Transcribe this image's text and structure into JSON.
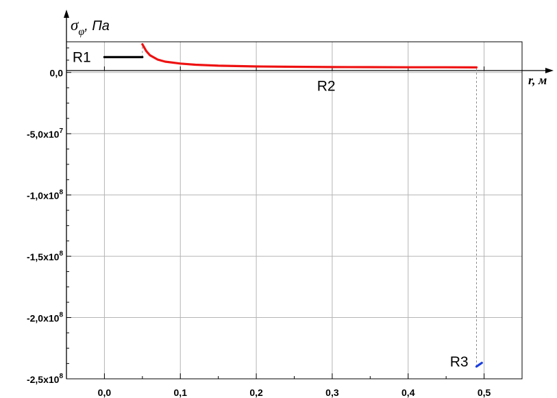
{
  "chart_data": {
    "type": "line",
    "ylabel": {
      "symbol": "σ",
      "subscript": "φ",
      "unit": ", Па"
    },
    "xlabel": "r, м",
    "xlim": [
      -0.05,
      0.55
    ],
    "ylim": [
      -250000000,
      25000000
    ],
    "x_ticks": [
      {
        "value": 0.0,
        "label": "0,0"
      },
      {
        "value": 0.1,
        "label": "0,1"
      },
      {
        "value": 0.2,
        "label": "0,2"
      },
      {
        "value": 0.3,
        "label": "0,3"
      },
      {
        "value": 0.4,
        "label": "0,4"
      },
      {
        "value": 0.5,
        "label": "0,5"
      }
    ],
    "y_ticks": [
      {
        "value": 0,
        "mantissa": "0,0",
        "exp": ""
      },
      {
        "value": -50000000,
        "mantissa": "-5,0x10",
        "exp": "7"
      },
      {
        "value": -100000000,
        "mantissa": "-1,0x10",
        "exp": "8"
      },
      {
        "value": -150000000,
        "mantissa": "-1,5x10",
        "exp": "8"
      },
      {
        "value": -200000000,
        "mantissa": "-2,0x10",
        "exp": "8"
      },
      {
        "value": -250000000,
        "mantissa": "-2,5x10",
        "exp": "8"
      }
    ],
    "grid": true,
    "series": [
      {
        "name": "R1",
        "color": "#000000",
        "points": [
          [
            0.0,
            12500000
          ],
          [
            0.05,
            12500000
          ]
        ]
      },
      {
        "name": "R2",
        "color": "#ee1111",
        "points": [
          [
            0.05,
            23000000
          ],
          [
            0.055,
            17500000
          ],
          [
            0.06,
            14000000
          ],
          [
            0.07,
            10500000
          ],
          [
            0.08,
            8800000
          ],
          [
            0.1,
            7200000
          ],
          [
            0.12,
            6300000
          ],
          [
            0.15,
            5500000
          ],
          [
            0.2,
            4900000
          ],
          [
            0.25,
            4600000
          ],
          [
            0.3,
            4400000
          ],
          [
            0.35,
            4300000
          ],
          [
            0.4,
            4200000
          ],
          [
            0.45,
            4200000
          ],
          [
            0.49,
            4100000
          ]
        ]
      },
      {
        "name": "R3",
        "color": "#1a3fe0",
        "points": [
          [
            0.49,
            -240000000
          ],
          [
            0.497,
            -237000000
          ]
        ]
      }
    ],
    "annotations": [
      {
        "text": "R1",
        "x": -0.042,
        "y": 12500000
      },
      {
        "text": "R2",
        "x": 0.28,
        "y": -11000000
      },
      {
        "text": "R3",
        "x": 0.455,
        "y": -236000000
      }
    ],
    "reference_lines": [
      {
        "x": 0.05,
        "from_y": 12500000,
        "to_y": 23000000
      },
      {
        "x": 0.49,
        "from_y": -240000000,
        "to_y": 4100000
      }
    ]
  }
}
